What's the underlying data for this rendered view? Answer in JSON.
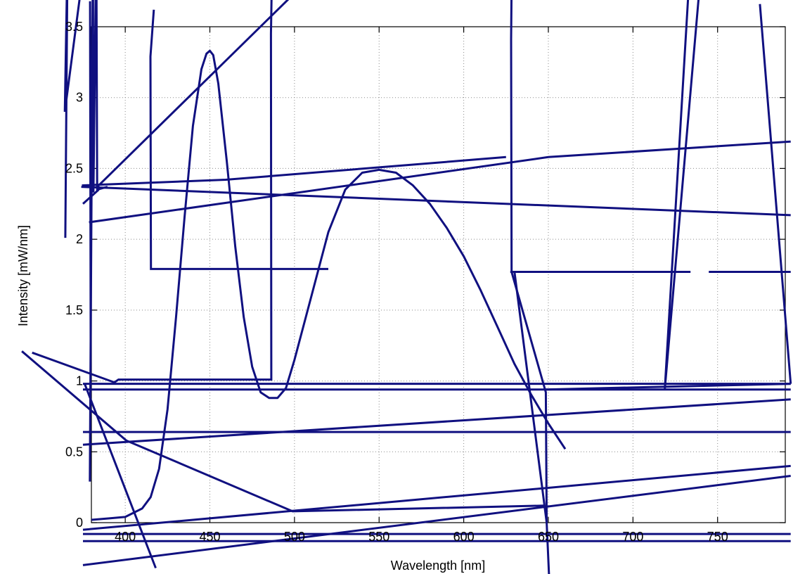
{
  "chart_data": {
    "type": "line",
    "title": "",
    "xlabel": "Wavelength [nm]",
    "ylabel": "Intensity [mW/nm]",
    "xlim": [
      380,
      790
    ],
    "ylim": [
      0,
      3.5
    ],
    "xticks": [
      400,
      450,
      500,
      550,
      600,
      650,
      700,
      750
    ],
    "yticks": [
      0,
      0.5,
      1,
      1.5,
      2,
      2.5,
      3,
      3.5
    ],
    "xtick_labels": [
      "400",
      "450",
      "500",
      "550",
      "600",
      "650",
      "700",
      "750"
    ],
    "ytick_labels": [
      "0",
      "0.5",
      "1",
      "1.5",
      "2",
      "2.5",
      "3",
      "3.5"
    ],
    "grid": true,
    "series_color": "#101080",
    "series": [
      {
        "x": [
          380,
          390,
          400,
          410,
          415,
          420,
          425,
          430,
          435,
          440,
          445,
          448,
          450,
          452,
          455,
          460,
          465,
          470,
          475,
          480,
          485,
          490,
          495,
          500,
          510,
          520,
          530,
          540,
          550,
          560,
          570,
          580,
          590,
          600,
          610,
          620,
          630,
          640,
          650,
          660
        ],
        "y": [
          0.02,
          0.03,
          0.04,
          0.1,
          0.18,
          0.38,
          0.8,
          1.45,
          2.15,
          2.8,
          3.2,
          3.31,
          3.33,
          3.3,
          3.1,
          2.55,
          1.95,
          1.45,
          1.1,
          0.92,
          0.88,
          0.88,
          0.95,
          1.15,
          1.6,
          2.05,
          2.35,
          2.47,
          2.49,
          2.47,
          2.38,
          2.25,
          2.08,
          1.88,
          1.64,
          1.38,
          1.12,
          0.9,
          0.7,
          0.52
        ]
      }
    ],
    "artifact_lines": [
      {
        "x": [
          375.6,
          364.3,
          365.9,
          364.6
        ],
        "y": [
          3.93,
          2.9,
          4.03,
          2.01
        ]
      },
      {
        "x": [
          379.2,
          379.6,
          379.1,
          380.9,
          381.2,
          382.9,
          383.4,
          389.5
        ],
        "y": [
          3.68,
          1.26,
          0.29,
          4.04,
          2.33,
          4.11,
          2.35,
          2.37
        ]
      },
      {
        "x": [
          416.9,
          414.9,
          415.2,
          520.0
        ],
        "y": [
          3.62,
          3.29,
          1.79,
          1.79
        ]
      },
      {
        "x": [
          486.6,
          486.1,
          486.3,
          396.0,
          393.6,
          345.0
        ],
        "y": [
          3.81,
          3.45,
          1.01,
          1.01,
          0.99,
          1.2
        ]
      },
      {
        "x": [
          374.4,
          459.4,
          625.0
        ],
        "y": [
          2.38,
          2.42,
          2.58
        ]
      },
      {
        "x": [
          382.6,
          500.3
        ],
        "y": [
          2.36,
          3.74
        ]
      },
      {
        "x": [
          384.3,
          375.0
        ],
        "y": [
          2.35,
          2.25
        ]
      },
      {
        "x": [
          374.0,
          793.2
        ],
        "y": [
          2.37,
          2.17
        ]
      },
      {
        "x": [
          378.6,
          650.0,
          793.2
        ],
        "y": [
          2.12,
          2.58,
          2.69
        ]
      },
      {
        "x": [
          338.9,
          400.6,
          498.9,
          647.7
        ],
        "y": [
          1.21,
          0.58,
          0.08,
          0.12
        ]
      },
      {
        "x": [
          375.0,
          793.2
        ],
        "y": [
          0.64,
          0.64
        ]
      },
      {
        "x": [
          375.0,
          793.2
        ],
        "y": [
          0.55,
          0.87
        ]
      },
      {
        "x": [
          375.0,
          793.2
        ],
        "y": [
          0.94,
          0.94
        ]
      },
      {
        "x": [
          375.0,
          793.2
        ],
        "y": [
          0.98,
          0.98
        ]
      },
      {
        "x": [
          375.0,
          793.2
        ],
        "y": [
          -0.08,
          -0.08
        ]
      },
      {
        "x": [
          375.0,
          793.2
        ],
        "y": [
          -0.13,
          -0.13
        ]
      },
      {
        "x": [
          376.0,
          418.0
        ],
        "y": [
          0.98,
          -0.32
        ]
      },
      {
        "x": [
          375.0,
          793.2
        ],
        "y": [
          -0.05,
          0.4
        ]
      },
      {
        "x": [
          375.0,
          793.2
        ],
        "y": [
          -0.3,
          0.33
        ]
      },
      {
        "x": [
          628.3,
          628.0,
          628.3,
          648.5,
          649.0
        ],
        "y": [
          3.8,
          3.41,
          1.77,
          0.92,
          0.0
        ]
      },
      {
        "x": [
          627.5,
          720.0,
          734.0
        ],
        "y": [
          1.77,
          1.77,
          1.77
        ]
      },
      {
        "x": [
          741.3,
          718.8,
          734.0
        ],
        "y": [
          4.05,
          0.94,
          3.99
        ]
      },
      {
        "x": [
          648.5,
          793.2
        ],
        "y": [
          0.94,
          0.98
        ]
      },
      {
        "x": [
          650.5,
          649.0,
          630.0
        ],
        "y": [
          -0.4,
          0.0,
          1.77
        ]
      },
      {
        "x": [
          775.0,
          793.2
        ],
        "y": [
          3.66,
          0.98
        ]
      },
      {
        "x": [
          793.2,
          744.8
        ],
        "y": [
          1.77,
          1.77
        ]
      }
    ]
  }
}
